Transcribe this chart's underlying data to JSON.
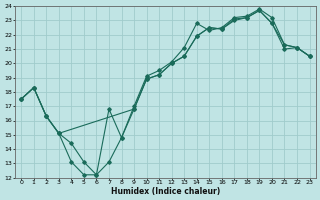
{
  "xlabel": "Humidex (Indice chaleur)",
  "ylabel": "",
  "bg_color": "#c0e4e4",
  "grid_color": "#a0cccc",
  "line_color": "#1a6b5a",
  "xlim": [
    -0.5,
    23.5
  ],
  "ylim": [
    12,
    24
  ],
  "xticks": [
    0,
    1,
    2,
    3,
    4,
    5,
    6,
    7,
    8,
    9,
    10,
    11,
    12,
    13,
    14,
    15,
    16,
    17,
    18,
    19,
    20,
    21,
    22,
    23
  ],
  "yticks": [
    12,
    13,
    14,
    15,
    16,
    17,
    18,
    19,
    20,
    21,
    22,
    23,
    24
  ],
  "series1_x": [
    0,
    1,
    2,
    3,
    4,
    5,
    6,
    7,
    8,
    9,
    10,
    11,
    12,
    13,
    14,
    15,
    16,
    17,
    18,
    19,
    20,
    21,
    22,
    23
  ],
  "series1_y": [
    17.5,
    18.3,
    16.3,
    15.1,
    13.1,
    12.2,
    12.2,
    16.8,
    14.8,
    17.0,
    19.1,
    19.5,
    20.1,
    21.1,
    22.8,
    22.3,
    22.5,
    23.2,
    23.3,
    23.8,
    23.2,
    21.3,
    21.1,
    20.5
  ],
  "series2_x": [
    0,
    1,
    2,
    3,
    9,
    10,
    11,
    12,
    13,
    14,
    15,
    16,
    17,
    18,
    19,
    20,
    21,
    22,
    23
  ],
  "series2_y": [
    17.5,
    18.3,
    16.3,
    15.1,
    16.8,
    18.9,
    19.2,
    20.0,
    20.5,
    21.9,
    22.5,
    22.4,
    23.1,
    23.2,
    23.7,
    22.8,
    21.0,
    21.1,
    20.5
  ],
  "series3_x": [
    0,
    1,
    2,
    3,
    4,
    5,
    6,
    7,
    8,
    9,
    10,
    11,
    12,
    13,
    14,
    15,
    16,
    17,
    18,
    19,
    20,
    21,
    22,
    23
  ],
  "series3_y": [
    17.5,
    18.3,
    16.3,
    15.1,
    14.4,
    13.1,
    12.2,
    13.1,
    14.8,
    16.8,
    18.9,
    19.2,
    20.0,
    20.5,
    21.9,
    22.5,
    22.4,
    23.0,
    23.2,
    23.7,
    22.8,
    21.3,
    21.1,
    20.5
  ]
}
